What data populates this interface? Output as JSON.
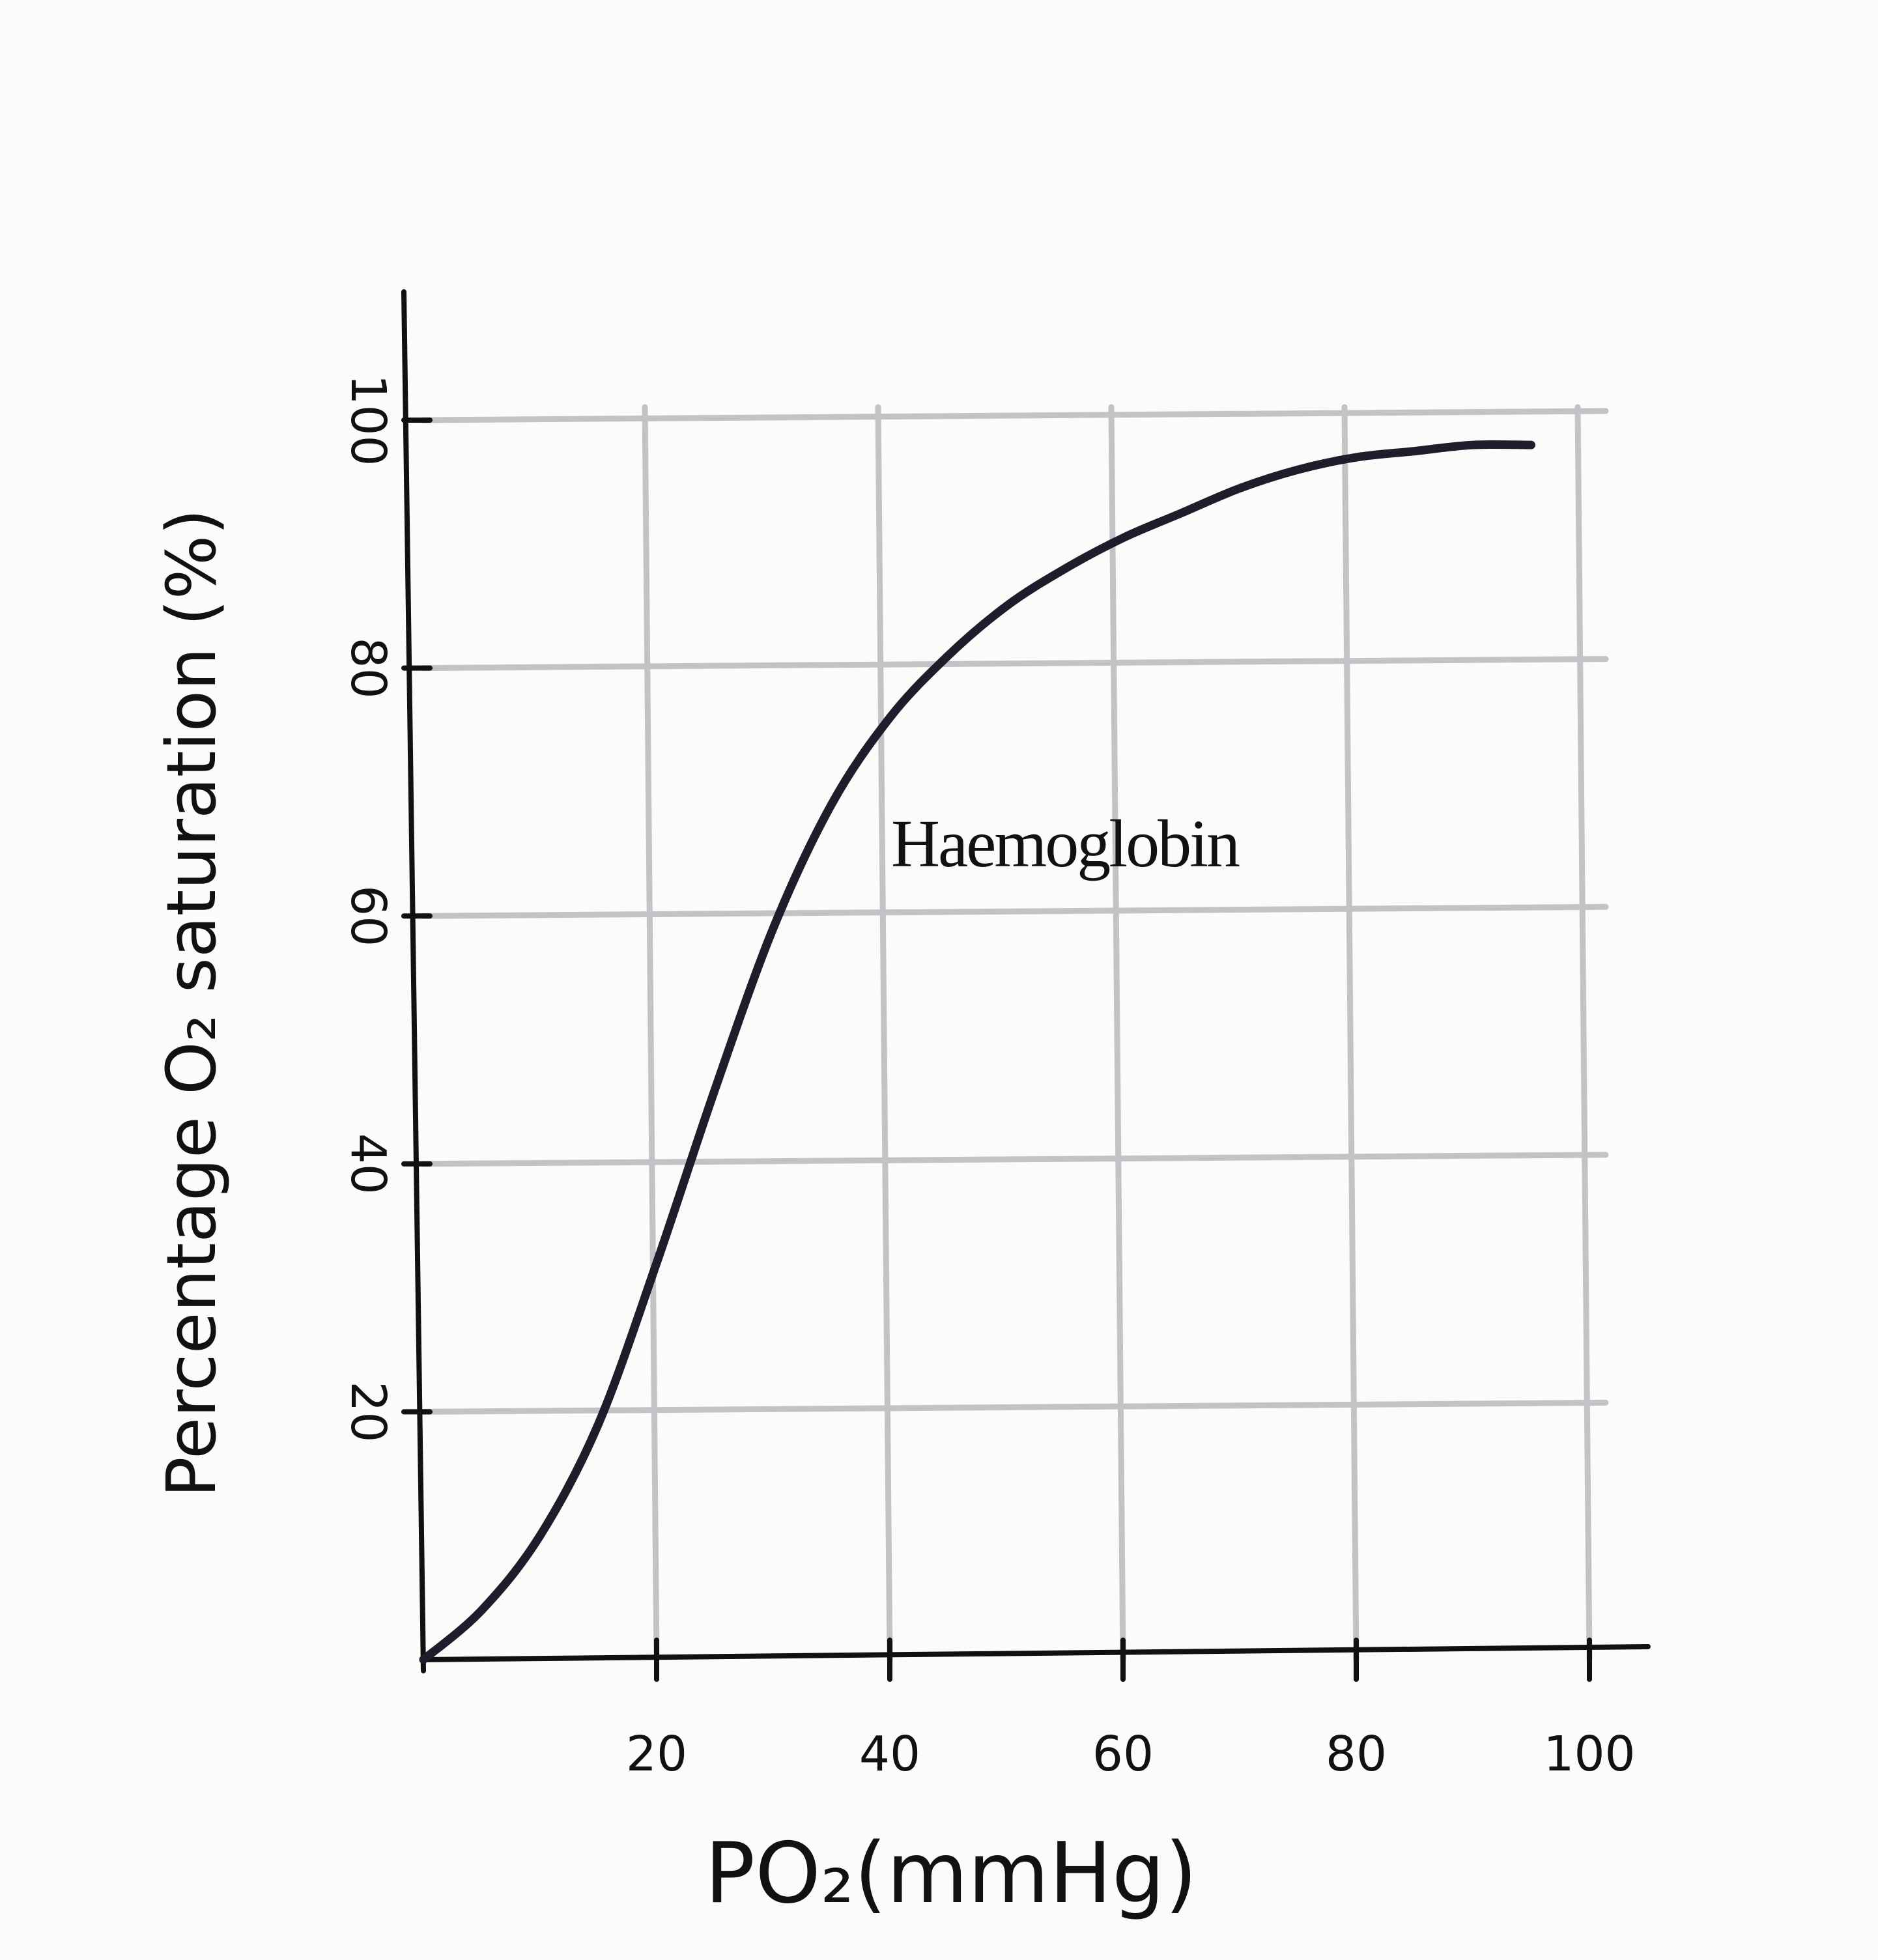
{
  "chart_data": {
    "type": "line",
    "title": "",
    "xlabel": "PO₂(mmHg)",
    "ylabel": "Percentage O₂ saturation (%)",
    "xlim": [
      0,
      100
    ],
    "ylim": [
      0,
      100
    ],
    "x_ticks": [
      20,
      40,
      60,
      80,
      100
    ],
    "y_ticks": [
      20,
      40,
      60,
      80,
      100
    ],
    "x_tick_labels": [
      "20",
      "40",
      "60",
      "80",
      "100"
    ],
    "y_tick_labels": [
      "20",
      "40",
      "60",
      "80",
      "100"
    ],
    "grid": true,
    "legend": "none",
    "series": [
      {
        "name": "Haemoglobin",
        "color": "#1f1d2b",
        "x": [
          0,
          5,
          10,
          15,
          20,
          25,
          30,
          35,
          40,
          45,
          50,
          55,
          60,
          65,
          70,
          75,
          80,
          85,
          90,
          95
        ],
        "y": [
          0,
          4,
          10,
          19,
          32,
          46,
          59,
          69,
          76,
          81,
          85,
          88,
          90.5,
          92.5,
          94.5,
          96,
          97,
          97.5,
          98,
          98
        ]
      }
    ],
    "annotations": [
      {
        "text": "Haemoglobin",
        "x": 55,
        "y": 64
      }
    ]
  }
}
